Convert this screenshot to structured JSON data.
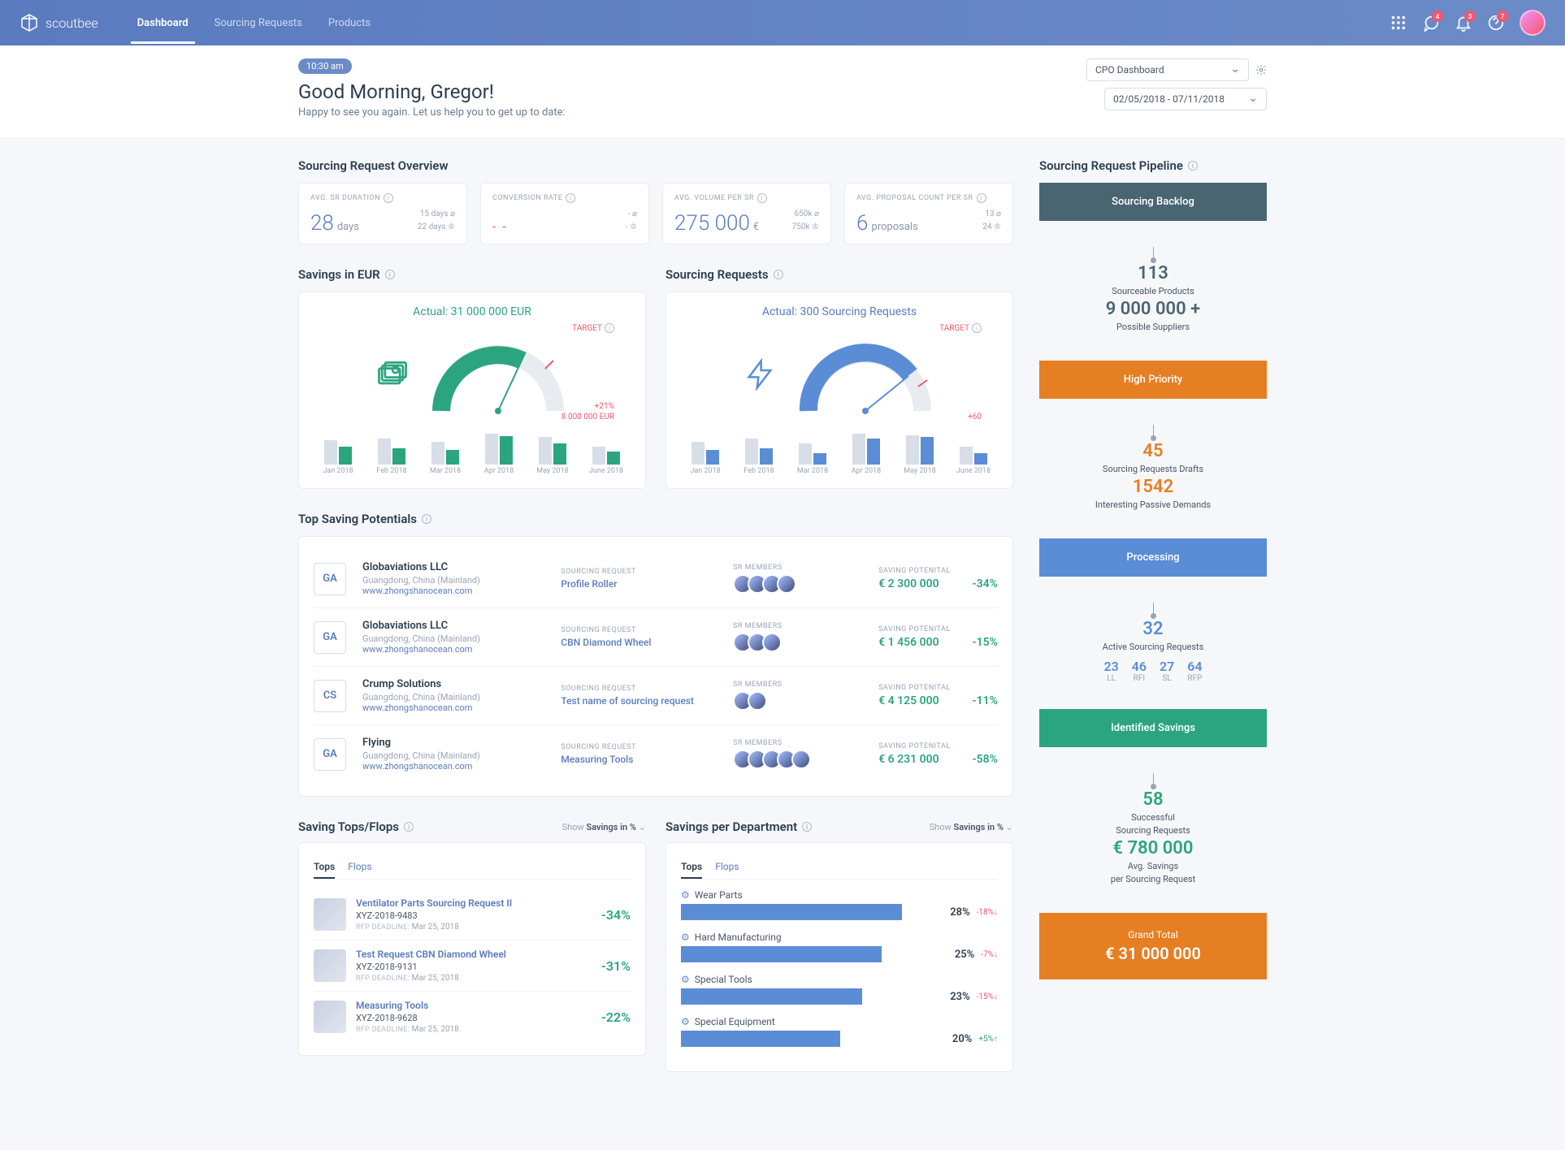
{
  "brand": "scoutbee",
  "nav": {
    "dashboard": "Dashboard",
    "sourcing": "Sourcing Requests",
    "products": "Products"
  },
  "topbar": {
    "msg_badge": "4",
    "bell_badge": "3",
    "help_badge": "7"
  },
  "header": {
    "time": "10:30 am",
    "greeting": "Good Morning, Gregor!",
    "sub": "Happy to see you again. Let us help you to get up to date:",
    "dashboard_select": "CPO Dashboard",
    "date_range": "02/05/2018 - 07/11/2018"
  },
  "overview": {
    "title": "Sourcing Request Overview",
    "kpis": [
      {
        "label": "AVG. SR DURATION",
        "value": "28",
        "unit": "days",
        "side1": "15 days",
        "side2": "22 days"
      },
      {
        "label": "CONVERSION RATE",
        "value": "- -",
        "unit": "",
        "side1": "-",
        "side2": "-"
      },
      {
        "label": "AVG. VOLUME PER SR",
        "value": "275 000",
        "unit": "€",
        "side1": "650k",
        "side2": "750k"
      },
      {
        "label": "AVG. PROPOSAL COUNT PER SR",
        "value": "6",
        "unit": "proposals",
        "side1": "13",
        "side2": "24"
      }
    ]
  },
  "savings_gauge": {
    "title": "Savings in EUR",
    "actual": "Actual: 31 000 000 EUR",
    "target": "TARGET",
    "delta_pct": "+21%",
    "delta_abs": "8 000 000 EUR",
    "months": [
      "Jan 2018",
      "Feb 2018",
      "Mar 2018",
      "Apr 2018",
      "May 2018",
      "June 2018"
    ],
    "grey": [
      30,
      32,
      28,
      38,
      34,
      22
    ],
    "color": [
      22,
      20,
      18,
      35,
      26,
      16
    ],
    "bar_color": "#2ba57d"
  },
  "requests_gauge": {
    "title": "Sourcing Requests",
    "actual": "Actual: 300 Sourcing Requests",
    "target": "TARGET",
    "delta": "+60",
    "months": [
      "Jan 2018",
      "Feb 2018",
      "Mar 2018",
      "Apr 2018",
      "May 2018",
      "June 2018"
    ],
    "grey": [
      28,
      32,
      26,
      38,
      36,
      22
    ],
    "color": [
      18,
      20,
      14,
      32,
      34,
      14
    ],
    "bar_color": "#5a8dd6"
  },
  "potentials": {
    "title": "Top Saving Potentials",
    "labels": {
      "sr": "SOURCING REQUEST",
      "members": "SR MEMBERS",
      "saving": "SAVING POTENITAL"
    },
    "rows": [
      {
        "code": "GA",
        "name": "Globaviations LLC",
        "loc": "Guangdong, China (Mainland)",
        "link": "www.zhongshanocean.com",
        "req": "Profile Roller",
        "members": 4,
        "amount": "€ 2 300 000",
        "pct": "-34%"
      },
      {
        "code": "GA",
        "name": "Globaviations LLC",
        "loc": "Guangdong, China (Mainland)",
        "link": "www.zhongshanocean.com",
        "req": "CBN Diamond Wheel",
        "members": 3,
        "amount": "€ 1 456 000",
        "pct": "-15%"
      },
      {
        "code": "CS",
        "name": "Crump Solutions",
        "loc": "Guangdong, China (Mainland)",
        "link": "www.zhongshanocean.com",
        "req": "Test name of sourcing request",
        "members": 2,
        "amount": "€ 4 125 000",
        "pct": "-11%"
      },
      {
        "code": "GA",
        "name": "Flying",
        "loc": "Guangdong, China (Mainland)",
        "link": "www.zhongshanocean.com",
        "req": "Measuring Tools",
        "members": 5,
        "amount": "€ 6 231 000",
        "pct": "-58%"
      }
    ]
  },
  "topsflops": {
    "title": "Saving Tops/Flops",
    "show": "Show",
    "filter": "Savings in %",
    "tabs": {
      "tops": "Tops",
      "flops": "Flops"
    },
    "rows": [
      {
        "title": "Ventilator Parts  Sourcing Request II",
        "sub": "XYZ-2018-9483",
        "deadline_l": "RFP DEADLINE:",
        "deadline": "Mar 25, 2018",
        "pct": "-34%"
      },
      {
        "title": "Test Request CBN Diamond Wheel",
        "sub": "XYZ-2018-9131",
        "deadline_l": "RFP DEADLINE:",
        "deadline": "Mar 25, 2018",
        "pct": "-31%"
      },
      {
        "title": "Measuring Tools",
        "sub": "XYZ-2018-9628",
        "deadline_l": "RFP DEADLINE:",
        "deadline": "Mar 25, 2018",
        "pct": "-22%"
      }
    ]
  },
  "dept": {
    "title": "Savings per Department",
    "show": "Show",
    "filter": "Savings in %",
    "tabs": {
      "tops": "Tops",
      "flops": "Flops"
    },
    "rows": [
      {
        "label": "Wear Parts",
        "pct": 28,
        "delta": "-18%",
        "dir": "neg"
      },
      {
        "label": "Hard Manufacturing",
        "pct": 25,
        "delta": "-7%",
        "dir": "neg"
      },
      {
        "label": "Special Tools",
        "pct": 23,
        "delta": "-15%",
        "dir": "neg"
      },
      {
        "label": "Special Equipment",
        "pct": 20,
        "delta": "+5%",
        "dir": "pos"
      }
    ]
  },
  "pipeline": {
    "title": "Sourcing Request Pipeline",
    "stages": [
      {
        "hdr": "Sourcing Backlog",
        "c": "c1",
        "lines": [
          {
            "t": "big",
            "v": "113"
          },
          {
            "t": "txt",
            "v": "Sourceable Products"
          },
          {
            "t": "big",
            "v": "9 000 000 +"
          },
          {
            "t": "txt",
            "v": "Possible Suppliers"
          }
        ]
      },
      {
        "hdr": "High Priority",
        "c": "c2",
        "lines": [
          {
            "t": "big",
            "v": "45"
          },
          {
            "t": "txt",
            "v": "Sourcing Requests Drafts"
          },
          {
            "t": "big",
            "v": "1542"
          },
          {
            "t": "txt",
            "v": "Interesting Passive Demands"
          }
        ]
      },
      {
        "hdr": "Processing",
        "c": "c3",
        "lines": [
          {
            "t": "big",
            "v": "32"
          },
          {
            "t": "txt",
            "v": "Active Sourcing Requests"
          }
        ],
        "stats": [
          {
            "n": "23",
            "l": "LL"
          },
          {
            "n": "46",
            "l": "RFI"
          },
          {
            "n": "27",
            "l": "SL"
          },
          {
            "n": "64",
            "l": "RFP"
          }
        ]
      },
      {
        "hdr": "Identified Savings",
        "c": "c4",
        "lines": [
          {
            "t": "big",
            "v": "58"
          },
          {
            "t": "txt",
            "v": "Successful"
          },
          {
            "t": "txt",
            "v": "Sourcing Requests"
          },
          {
            "t": "big",
            "v": "€ 780 000"
          },
          {
            "t": "txt",
            "v": "Avg. Savings"
          },
          {
            "t": "txt",
            "v": "per Sourcing Request"
          }
        ]
      }
    ],
    "total": {
      "label": "Grand Total",
      "value": "€ 31 000 000"
    }
  }
}
